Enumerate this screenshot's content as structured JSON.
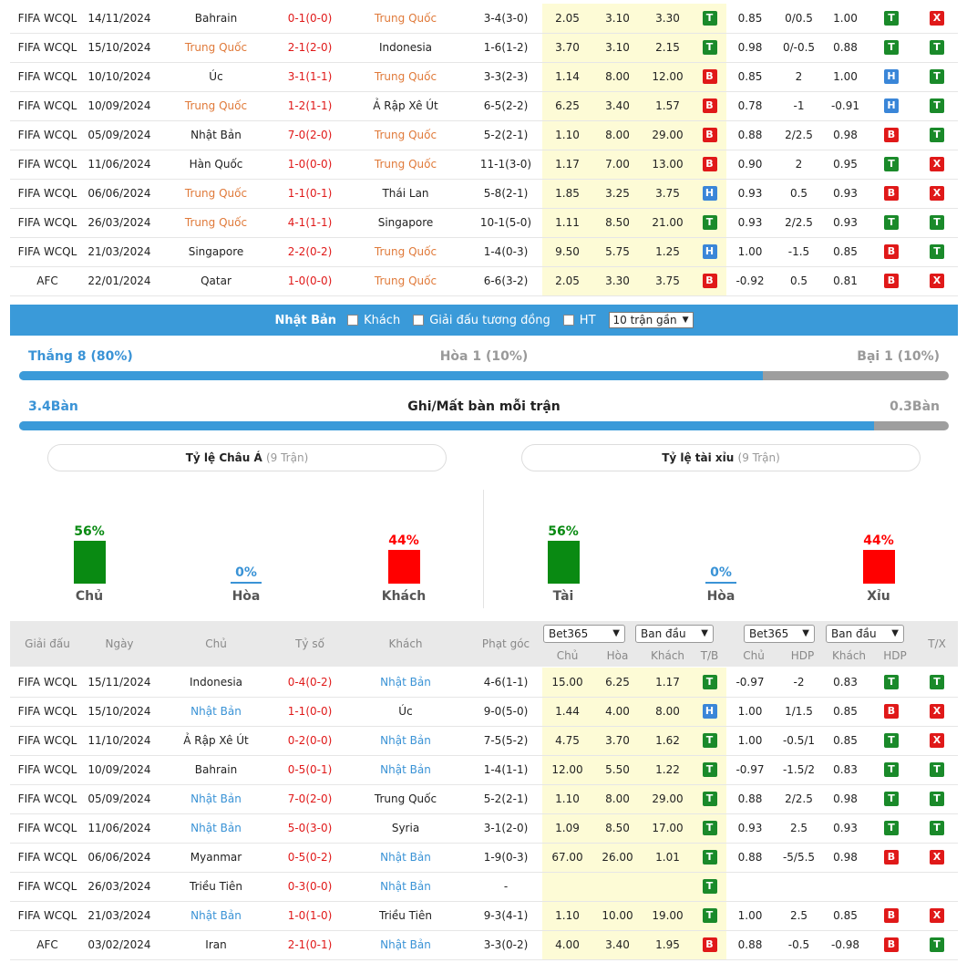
{
  "top_matches": [
    {
      "league": "FIFA WCQL",
      "date": "14/11/2024",
      "home": "Bahrain",
      "home_hl": false,
      "score": "0-1(0-0)",
      "away": "Trung Quốc",
      "away_hl": true,
      "corners": "3-4(3-0)",
      "o1": "2.05",
      "ox": "3.10",
      "o2": "3.30",
      "r1": "T",
      "h1": "0.85",
      "hdp": "0/0.5",
      "h2": "1.00",
      "r2": "T",
      "r3": "X"
    },
    {
      "league": "FIFA WCQL",
      "date": "15/10/2024",
      "home": "Trung Quốc",
      "home_hl": true,
      "score": "2-1(2-0)",
      "away": "Indonesia",
      "away_hl": false,
      "corners": "1-6(1-2)",
      "o1": "3.70",
      "ox": "3.10",
      "o2": "2.15",
      "r1": "T",
      "h1": "0.98",
      "hdp": "0/-0.5",
      "h2": "0.88",
      "r2": "T",
      "r3": "T"
    },
    {
      "league": "FIFA WCQL",
      "date": "10/10/2024",
      "home": "Úc",
      "home_hl": false,
      "score": "3-1(1-1)",
      "away": "Trung Quốc",
      "away_hl": true,
      "corners": "3-3(2-3)",
      "o1": "1.14",
      "ox": "8.00",
      "o2": "12.00",
      "r1": "B",
      "h1": "0.85",
      "hdp": "2",
      "h2": "1.00",
      "r2": "H",
      "r3": "T"
    },
    {
      "league": "FIFA WCQL",
      "date": "10/09/2024",
      "home": "Trung Quốc",
      "home_hl": true,
      "score": "1-2(1-1)",
      "away": "Ả Rập Xê Út",
      "away_hl": false,
      "corners": "6-5(2-2)",
      "o1": "6.25",
      "ox": "3.40",
      "o2": "1.57",
      "r1": "B",
      "h1": "0.78",
      "hdp": "-1",
      "h2": "-0.91",
      "r2": "H",
      "r3": "T"
    },
    {
      "league": "FIFA WCQL",
      "date": "05/09/2024",
      "home": "Nhật Bản",
      "home_hl": false,
      "score": "7-0(2-0)",
      "away": "Trung Quốc",
      "away_hl": true,
      "corners": "5-2(2-1)",
      "o1": "1.10",
      "ox": "8.00",
      "o2": "29.00",
      "r1": "B",
      "h1": "0.88",
      "hdp": "2/2.5",
      "h2": "0.98",
      "r2": "B",
      "r3": "T"
    },
    {
      "league": "FIFA WCQL",
      "date": "11/06/2024",
      "home": "Hàn Quốc",
      "home_hl": false,
      "score": "1-0(0-0)",
      "away": "Trung Quốc",
      "away_hl": true,
      "corners": "11-1(3-0)",
      "o1": "1.17",
      "ox": "7.00",
      "o2": "13.00",
      "r1": "B",
      "h1": "0.90",
      "hdp": "2",
      "h2": "0.95",
      "r2": "T",
      "r3": "X"
    },
    {
      "league": "FIFA WCQL",
      "date": "06/06/2024",
      "home": "Trung Quốc",
      "home_hl": true,
      "score": "1-1(0-1)",
      "away": "Thái Lan",
      "away_hl": false,
      "corners": "5-8(2-1)",
      "o1": "1.85",
      "ox": "3.25",
      "o2": "3.75",
      "r1": "H",
      "h1": "0.93",
      "hdp": "0.5",
      "h2": "0.93",
      "r2": "B",
      "r3": "X"
    },
    {
      "league": "FIFA WCQL",
      "date": "26/03/2024",
      "home": "Trung Quốc",
      "home_hl": true,
      "score": "4-1(1-1)",
      "away": "Singapore",
      "away_hl": false,
      "corners": "10-1(5-0)",
      "o1": "1.11",
      "ox": "8.50",
      "o2": "21.00",
      "r1": "T",
      "h1": "0.93",
      "hdp": "2/2.5",
      "h2": "0.93",
      "r2": "T",
      "r3": "T"
    },
    {
      "league": "FIFA WCQL",
      "date": "21/03/2024",
      "home": "Singapore",
      "home_hl": false,
      "score": "2-2(0-2)",
      "away": "Trung Quốc",
      "away_hl": true,
      "corners": "1-4(0-3)",
      "o1": "9.50",
      "ox": "5.75",
      "o2": "1.25",
      "r1": "H",
      "h1": "1.00",
      "hdp": "-1.5",
      "h2": "0.85",
      "r2": "B",
      "r3": "T"
    },
    {
      "league": "AFC",
      "date": "22/01/2024",
      "home": "Qatar",
      "home_hl": false,
      "score": "1-0(0-0)",
      "away": "Trung Quốc",
      "away_hl": true,
      "corners": "6-6(3-2)",
      "o1": "2.05",
      "ox": "3.30",
      "o2": "3.75",
      "r1": "B",
      "h1": "-0.92",
      "hdp": "0.5",
      "h2": "0.81",
      "r2": "B",
      "r3": "X"
    }
  ],
  "filter": {
    "team": "Nhật Bản",
    "opt_away": "Khách",
    "opt_same_league": "Giải đấu tương đồng",
    "opt_ht": "HT",
    "recent_select": "10 trận gần"
  },
  "summary": {
    "win": "Thắng 8 (80%)",
    "draw": "Hòa 1 (10%)",
    "loss": "Bại 1 (10%)",
    "win_fraction": 0.8,
    "goals_for": "3.4Bàn",
    "goals_title": "Ghi/Mất bàn mỗi trận",
    "goals_against": "0.3Bàn",
    "goals_fraction": 0.92
  },
  "asian_handicap": {
    "title": "Tỷ lệ Châu Á",
    "count": "(9 Trận)",
    "bars": [
      {
        "pct": "56%",
        "label": "Chủ",
        "value": 56,
        "color": "#098a12"
      },
      {
        "pct": "0%",
        "label": "Hòa",
        "value": 0,
        "color": "#3a93d6"
      },
      {
        "pct": "44%",
        "label": "Khách",
        "value": 44,
        "color": "#ff0000"
      }
    ]
  },
  "over_under": {
    "title": "Tỷ lệ tài xỉu",
    "count": "(9 Trận)",
    "bars": [
      {
        "pct": "56%",
        "label": "Tài",
        "value": 56,
        "color": "#098a12"
      },
      {
        "pct": "0%",
        "label": "Hòa",
        "value": 0,
        "color": "#3a93d6"
      },
      {
        "pct": "44%",
        "label": "Xỉu",
        "value": 44,
        "color": "#ff0000"
      }
    ]
  },
  "bottom_header": {
    "league": "Giải đấu",
    "date": "Ngày",
    "home": "Chủ",
    "score": "Tỷ số",
    "away": "Khách",
    "corners": "Phạt góc",
    "bookmaker1": "Bet365",
    "type1": "Ban đầu",
    "bookmaker2": "Bet365",
    "type2": "Ban đầu",
    "sub_home": "Chủ",
    "sub_draw": "Hòa",
    "sub_away": "Khách",
    "sub_tb": "T/B",
    "sub_home2": "Chủ",
    "sub_hdp": "HDP",
    "sub_away2": "Khách",
    "sub_hdp2": "HDP",
    "tx": "T/X"
  },
  "bottom_matches": [
    {
      "league": "FIFA WCQL",
      "date": "15/11/2024",
      "home": "Indonesia",
      "home_hl": false,
      "score": "0-4(0-2)",
      "away": "Nhật Bản",
      "away_hl": true,
      "corners": "4-6(1-1)",
      "o1": "15.00",
      "ox": "6.25",
      "o2": "1.17",
      "r1": "T",
      "h1": "-0.97",
      "hdp": "-2",
      "h2": "0.83",
      "r2": "T",
      "r3": "T"
    },
    {
      "league": "FIFA WCQL",
      "date": "15/10/2024",
      "home": "Nhật Bản",
      "home_hl": true,
      "score": "1-1(0-0)",
      "away": "Úc",
      "away_hl": false,
      "corners": "9-0(5-0)",
      "o1": "1.44",
      "ox": "4.00",
      "o2": "8.00",
      "r1": "H",
      "h1": "1.00",
      "hdp": "1/1.5",
      "h2": "0.85",
      "r2": "B",
      "r3": "X"
    },
    {
      "league": "FIFA WCQL",
      "date": "11/10/2024",
      "home": "Ả Rập Xê Út",
      "home_hl": false,
      "score": "0-2(0-0)",
      "away": "Nhật Bản",
      "away_hl": true,
      "corners": "7-5(5-2)",
      "o1": "4.75",
      "ox": "3.70",
      "o2": "1.62",
      "r1": "T",
      "h1": "1.00",
      "hdp": "-0.5/1",
      "h2": "0.85",
      "r2": "T",
      "r3": "X"
    },
    {
      "league": "FIFA WCQL",
      "date": "10/09/2024",
      "home": "Bahrain",
      "home_hl": false,
      "score": "0-5(0-1)",
      "away": "Nhật Bản",
      "away_hl": true,
      "corners": "1-4(1-1)",
      "o1": "12.00",
      "ox": "5.50",
      "o2": "1.22",
      "r1": "T",
      "h1": "-0.97",
      "hdp": "-1.5/2",
      "h2": "0.83",
      "r2": "T",
      "r3": "T"
    },
    {
      "league": "FIFA WCQL",
      "date": "05/09/2024",
      "home": "Nhật Bản",
      "home_hl": true,
      "score": "7-0(2-0)",
      "away": "Trung Quốc",
      "away_hl": false,
      "corners": "5-2(2-1)",
      "o1": "1.10",
      "ox": "8.00",
      "o2": "29.00",
      "r1": "T",
      "h1": "0.88",
      "hdp": "2/2.5",
      "h2": "0.98",
      "r2": "T",
      "r3": "T"
    },
    {
      "league": "FIFA WCQL",
      "date": "11/06/2024",
      "home": "Nhật Bản",
      "home_hl": true,
      "score": "5-0(3-0)",
      "away": "Syria",
      "away_hl": false,
      "corners": "3-1(2-0)",
      "o1": "1.09",
      "ox": "8.50",
      "o2": "17.00",
      "r1": "T",
      "h1": "0.93",
      "hdp": "2.5",
      "h2": "0.93",
      "r2": "T",
      "r3": "T"
    },
    {
      "league": "FIFA WCQL",
      "date": "06/06/2024",
      "home": "Myanmar",
      "home_hl": false,
      "score": "0-5(0-2)",
      "away": "Nhật Bản",
      "away_hl": true,
      "corners": "1-9(0-3)",
      "o1": "67.00",
      "ox": "26.00",
      "o2": "1.01",
      "r1": "T",
      "h1": "0.88",
      "hdp": "-5/5.5",
      "h2": "0.98",
      "r2": "B",
      "r3": "X"
    },
    {
      "league": "FIFA WCQL",
      "date": "26/03/2024",
      "home": "Triều Tiên",
      "home_hl": false,
      "score": "0-3(0-0)",
      "away": "Nhật Bản",
      "away_hl": true,
      "corners": "-",
      "o1": "",
      "ox": "",
      "o2": "",
      "r1": "T",
      "h1": "",
      "hdp": "",
      "h2": "",
      "r2": "",
      "r3": ""
    },
    {
      "league": "FIFA WCQL",
      "date": "21/03/2024",
      "home": "Nhật Bản",
      "home_hl": true,
      "score": "1-0(1-0)",
      "away": "Triều Tiên",
      "away_hl": false,
      "corners": "9-3(4-1)",
      "o1": "1.10",
      "ox": "10.00",
      "o2": "19.00",
      "r1": "T",
      "h1": "1.00",
      "hdp": "2.5",
      "h2": "0.85",
      "r2": "B",
      "r3": "X"
    },
    {
      "league": "AFC",
      "date": "03/02/2024",
      "home": "Iran",
      "home_hl": false,
      "score": "2-1(0-1)",
      "away": "Nhật Bản",
      "away_hl": true,
      "corners": "3-3(0-2)",
      "o1": "4.00",
      "ox": "3.40",
      "o2": "1.95",
      "r1": "B",
      "h1": "0.88",
      "hdp": "-0.5",
      "h2": "-0.98",
      "r2": "B",
      "r3": "T"
    }
  ]
}
